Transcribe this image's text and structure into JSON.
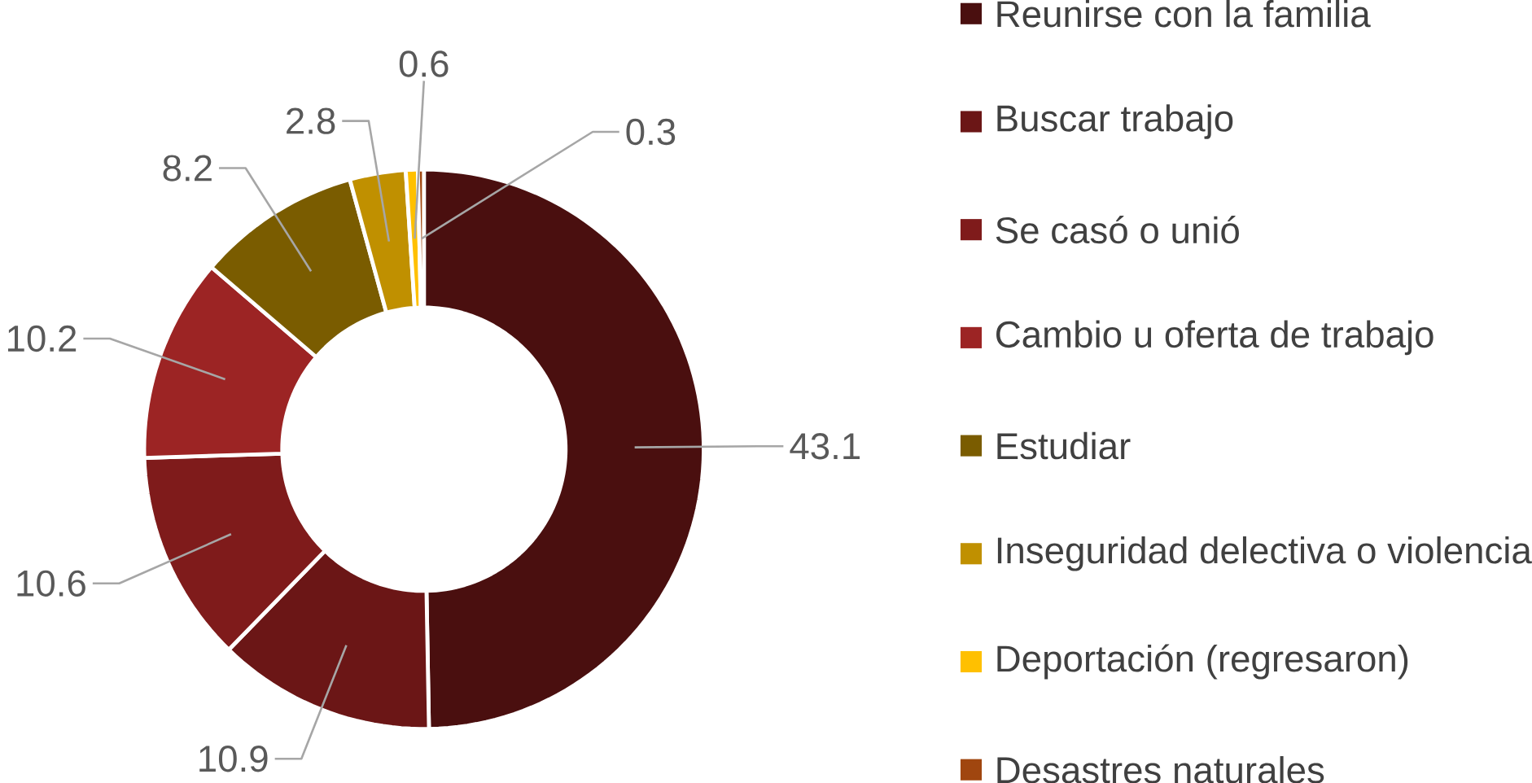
{
  "chart_data": {
    "type": "donut",
    "categories": [
      "Reunirse con la familia",
      "Buscar trabajo",
      "Se casó o unió",
      "Cambio u oferta de trabajo",
      "Estudiar",
      "Inseguridad delectiva o violencia",
      "Deportación (regresaron)",
      "Desastres naturales"
    ],
    "values": [
      43.1,
      10.9,
      10.6,
      10.2,
      8.2,
      2.8,
      0.6,
      0.3
    ],
    "colors": [
      "#4a0f0f",
      "#6b1616",
      "#7f1b1b",
      "#9c2424",
      "#7a5c00",
      "#c09000",
      "#ffc000",
      "#a0460f"
    ],
    "data_labels": true,
    "legend": "right"
  }
}
